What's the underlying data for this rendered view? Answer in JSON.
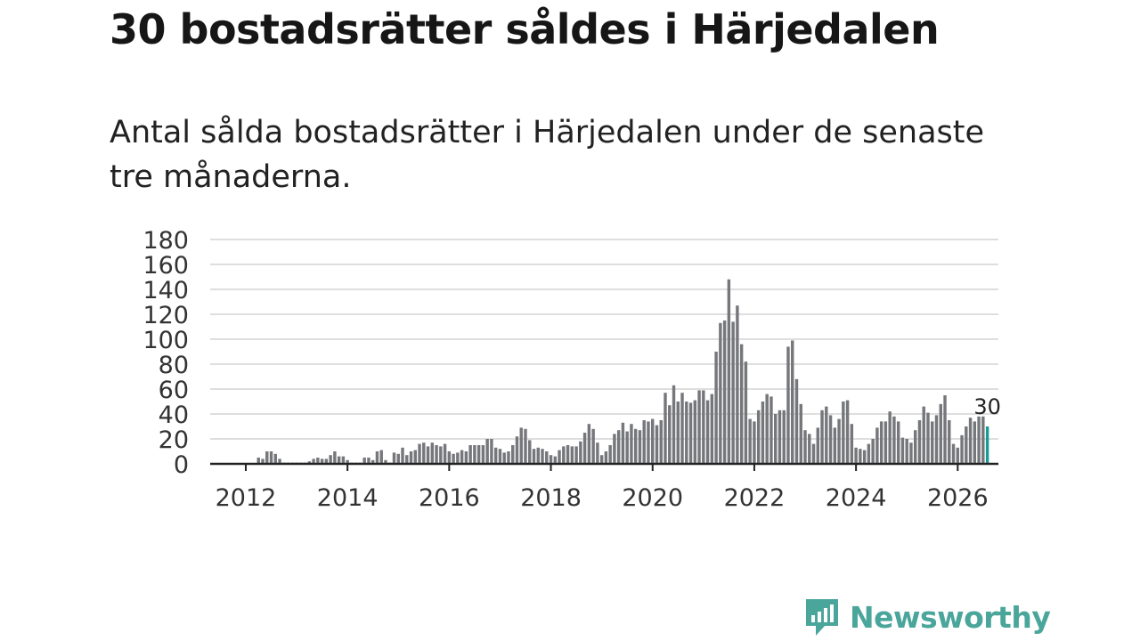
{
  "title": "30 bostadsrätter såldes i Härjedalen",
  "subtitle": "Antal sålda bostadsrätter i Härjedalen under de senaste tre månaderna.",
  "brand": {
    "name": "Newsworthy",
    "icon": "newsworthy-logo-icon",
    "color": "#4aa59a"
  },
  "colors": {
    "bar": "#76777b",
    "highlight": "#1a9a96",
    "grid": "#d4d4d4",
    "axis": "#222222"
  },
  "chart_data": {
    "type": "bar",
    "title": "Antal sålda bostadsrätter i Härjedalen under de senaste tre månaderna.",
    "xlabel": "",
    "ylabel": "",
    "x_start": 2011.5,
    "x_step": 0.08333,
    "x_range": [
      2011.3,
      2026.8
    ],
    "x_ticks": [
      2012,
      2014,
      2016,
      2018,
      2020,
      2022,
      2024,
      2026
    ],
    "y_ticks": [
      0,
      20,
      40,
      60,
      80,
      100,
      120,
      140,
      160,
      180
    ],
    "ylim": [
      0,
      180
    ],
    "grid": true,
    "highlight_last": true,
    "last_label": "30",
    "values": [
      0,
      0,
      0,
      0,
      0,
      0,
      0,
      0,
      0,
      5,
      4,
      10,
      10,
      8,
      4,
      1,
      1,
      1,
      1,
      1,
      1,
      2,
      4,
      5,
      4,
      4,
      7,
      10,
      6,
      6,
      3,
      1,
      1,
      1,
      5,
      5,
      3,
      10,
      11,
      3,
      1,
      9,
      8,
      13,
      7,
      10,
      11,
      16,
      17,
      14,
      17,
      15,
      14,
      16,
      10,
      8,
      9,
      11,
      10,
      15,
      15,
      15,
      15,
      20,
      20,
      13,
      12,
      9,
      10,
      15,
      22,
      29,
      28,
      19,
      12,
      13,
      12,
      10,
      7,
      6,
      11,
      14,
      15,
      14,
      14,
      18,
      25,
      32,
      28,
      17,
      7,
      10,
      15,
      24,
      27,
      33,
      26,
      32,
      28,
      27,
      35,
      34,
      36,
      31,
      35,
      57,
      47,
      63,
      50,
      57,
      50,
      49,
      51,
      59,
      59,
      51,
      56,
      90,
      113,
      115,
      148,
      114,
      127,
      96,
      82,
      36,
      34,
      43,
      50,
      56,
      54,
      40,
      43,
      43,
      94,
      99,
      68,
      48,
      27,
      24,
      16,
      29,
      43,
      46,
      39,
      29,
      36,
      50,
      51,
      32,
      13,
      12,
      11,
      16,
      20,
      29,
      34,
      34,
      42,
      38,
      34,
      21,
      20,
      17,
      27,
      35,
      46,
      41,
      34,
      39,
      48,
      55,
      35,
      16,
      13,
      23,
      30,
      37,
      34,
      38,
      38,
      30
    ]
  }
}
